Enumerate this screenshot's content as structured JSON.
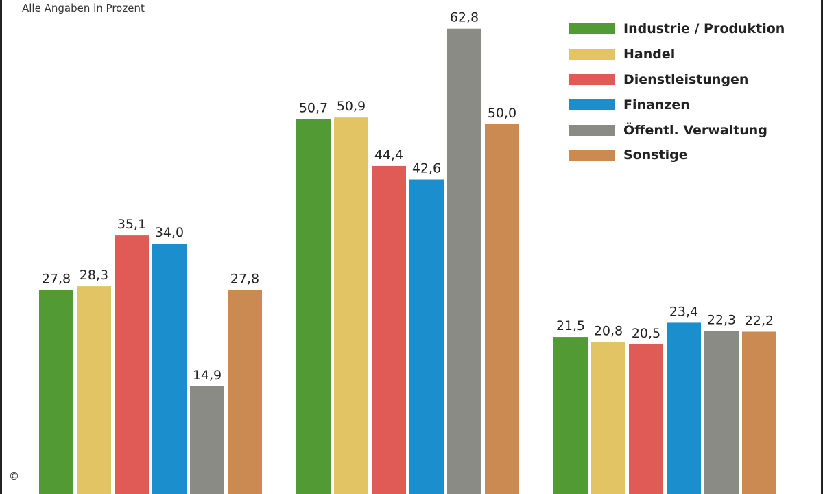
{
  "subtitle": "Alle Angaben in Prozent",
  "copyright": "©",
  "chart_data": {
    "type": "bar",
    "categories": [
      "",
      "",
      ""
    ],
    "series": [
      {
        "name": "Industrie / Produktion",
        "color": "#529a34",
        "values": [
          27.8,
          50.7,
          21.5
        ]
      },
      {
        "name": "Handel",
        "color": "#e3c465",
        "values": [
          28.3,
          50.9,
          20.8
        ]
      },
      {
        "name": "Dienstleistungen",
        "color": "#e05a56",
        "values": [
          35.1,
          44.4,
          20.5
        ]
      },
      {
        "name": "Finanzen",
        "color": "#1b8fcd",
        "values": [
          34.0,
          42.6,
          23.4
        ]
      },
      {
        "name": "Öffentl. Verwaltung",
        "color": "#8b8b85",
        "values": [
          14.9,
          62.8,
          22.3
        ]
      },
      {
        "name": "Sonstige",
        "color": "#cb8a51",
        "values": [
          27.8,
          50.0,
          22.2
        ]
      }
    ],
    "value_labels": [
      [
        "27,8",
        "50,7",
        "21,5"
      ],
      [
        "28,3",
        "50,9",
        "20,8"
      ],
      [
        "35,1",
        "44,4",
        "20,5"
      ],
      [
        "34,0",
        "42,6",
        "23,4"
      ],
      [
        "14,9",
        "62,8",
        "22,3"
      ],
      [
        "27,8",
        "50,0",
        "22,2"
      ]
    ],
    "legend_position": "top-right",
    "grid": false
  }
}
